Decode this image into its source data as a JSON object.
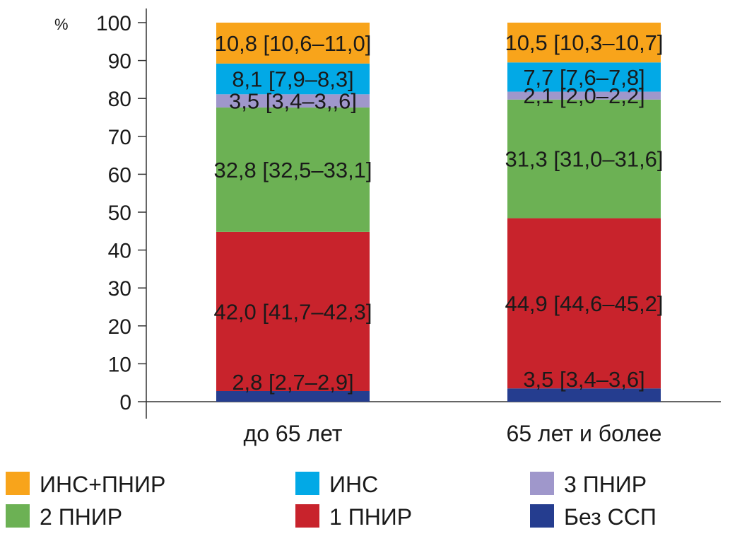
{
  "chart_data": {
    "type": "bar",
    "stacked": true,
    "y_unit": "%",
    "ylim": [
      0,
      100
    ],
    "y_ticks": [
      "0",
      "10",
      "20",
      "30",
      "40",
      "50",
      "60",
      "70",
      "80",
      "90",
      "100"
    ],
    "categories": [
      "до 65 лет",
      "65 лет и более"
    ],
    "series": [
      {
        "name": "Без ССП",
        "color": "#253d8f",
        "values": [
          2.8,
          3.5
        ],
        "labels": [
          "2,8 [2,7–2,9]",
          "3,5 [3,4–3,6]"
        ]
      },
      {
        "name": "1 ПНИР",
        "color": "#c8232c",
        "values": [
          42.0,
          44.9
        ],
        "labels": [
          "42,0 [41,7–42,3]",
          "44,9 [44,6–45,2]"
        ]
      },
      {
        "name": "2 ПНИР",
        "color": "#6cb154",
        "values": [
          32.8,
          31.3
        ],
        "labels": [
          "32,8 [32,5–33,1]",
          "31,3 [31,0–31,6]"
        ]
      },
      {
        "name": "3 ПНИР",
        "color": "#9f97cb",
        "values": [
          3.5,
          2.1
        ],
        "labels": [
          "3,5 [3,4–3,,6]",
          "2,1 [2,0–2,2]"
        ]
      },
      {
        "name": "ИНС",
        "color": "#02a9e6",
        "values": [
          8.1,
          7.7
        ],
        "labels": [
          "8,1 [7,9–8,3]",
          "7,7 [7,6–7,8]"
        ]
      },
      {
        "name": "ИНС+ПНИР",
        "color": "#f8a41b",
        "values": [
          10.8,
          10.5
        ],
        "labels": [
          "10,8 [10,6–11,0]",
          "10,5 [10,3–10,7]"
        ]
      }
    ],
    "legend": {
      "placement": "bottom",
      "order": [
        "ИНС+ПНИР",
        "ИНС",
        "3 ПНИР",
        "2 ПНИР",
        "1 ПНИР",
        "Без ССП"
      ]
    },
    "grid": false
  }
}
